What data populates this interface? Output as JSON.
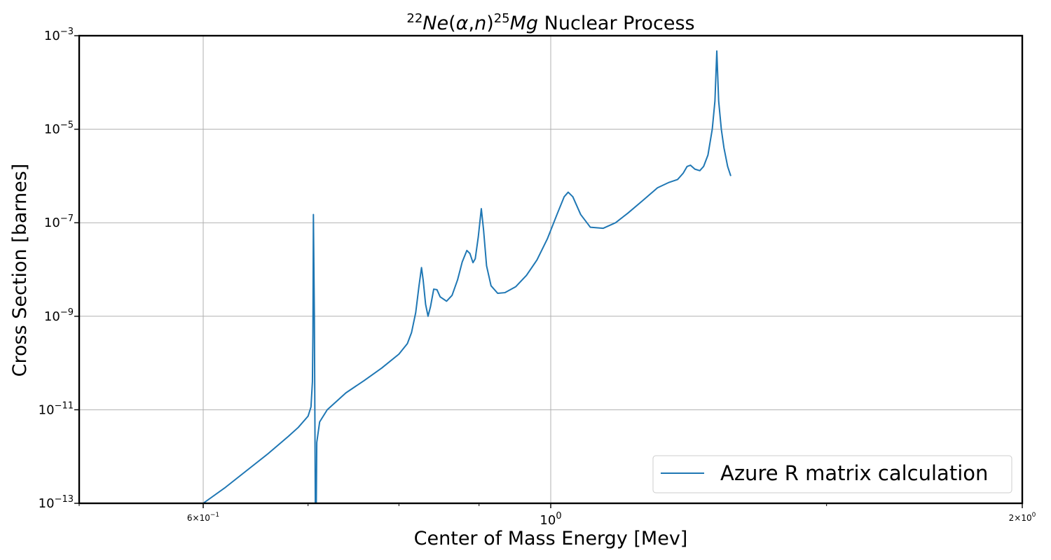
{
  "chart_data": {
    "type": "line",
    "title": {
      "pre_sup": "22",
      "reactant": "Ne",
      "open": "(",
      "alpha": "α",
      "comma": ",",
      "n": "n",
      "close": ")",
      "post_sup": "25",
      "product": "Mg",
      "suffix": " Nuclear Process"
    },
    "xlabel": "Center of Mass Energy [Mev]",
    "ylabel": "Cross Section [barnes]",
    "x_scale": "log",
    "y_scale": "log",
    "xlim": [
      0.5,
      2.0
    ],
    "ylim": [
      1e-13,
      0.001
    ],
    "grid": true,
    "legend_position": "lower-right",
    "x_ticks": [
      {
        "value": 0.6,
        "base": "6",
        "times": "×",
        "ten": "10",
        "exp": "−1"
      },
      {
        "value": 1.0,
        "base": "",
        "times": "",
        "ten": "10",
        "exp": "0"
      },
      {
        "value": 2.0,
        "base": "2",
        "times": "×",
        "ten": "10",
        "exp": "0"
      }
    ],
    "x_minor_ticks": [
      0.5,
      0.7,
      0.8,
      0.9,
      1.5
    ],
    "y_ticks": [
      {
        "value": 1e-13,
        "ten": "10",
        "exp": "−13"
      },
      {
        "value": 1e-11,
        "ten": "10",
        "exp": "−11"
      },
      {
        "value": 1e-09,
        "ten": "10",
        "exp": "−9"
      },
      {
        "value": 1e-07,
        "ten": "10",
        "exp": "−7"
      },
      {
        "value": 1e-05,
        "ten": "10",
        "exp": "−5"
      },
      {
        "value": 0.001,
        "ten": "10",
        "exp": "−3"
      }
    ],
    "series": [
      {
        "name": "Azure R matrix calculation",
        "color": "#1f77b4",
        "points": [
          [
            0.6,
            1e-13
          ],
          [
            0.62,
            2.2e-13
          ],
          [
            0.64,
            5.1e-13
          ],
          [
            0.66,
            1.15e-12
          ],
          [
            0.68,
            2.7e-12
          ],
          [
            0.69,
            4.2e-12
          ],
          [
            0.7,
            7.3e-12
          ],
          [
            0.703,
            1.15e-11
          ],
          [
            0.7045,
            4e-11
          ],
          [
            0.705,
            4e-10
          ],
          [
            0.7055,
            1.5e-07
          ],
          [
            0.7065,
            1e-09
          ],
          [
            0.7075,
            1e-13
          ],
          [
            0.708,
            1e-13
          ],
          [
            0.7085,
            1e-13
          ],
          [
            0.709,
            2e-12
          ],
          [
            0.712,
            5.5e-12
          ],
          [
            0.72,
            1e-11
          ],
          [
            0.74,
            2.3e-11
          ],
          [
            0.76,
            4.2e-11
          ],
          [
            0.78,
            7.8e-11
          ],
          [
            0.8,
            1.55e-10
          ],
          [
            0.81,
            2.6e-10
          ],
          [
            0.815,
            4.5e-10
          ],
          [
            0.82,
            1.2e-09
          ],
          [
            0.824,
            4.5e-09
          ],
          [
            0.827,
            1.1e-08
          ],
          [
            0.829,
            6e-09
          ],
          [
            0.832,
            1.8e-09
          ],
          [
            0.835,
            1e-09
          ],
          [
            0.838,
            1.6e-09
          ],
          [
            0.842,
            3.8e-09
          ],
          [
            0.846,
            3.7e-09
          ],
          [
            0.85,
            2.6e-09
          ],
          [
            0.858,
            2.1e-09
          ],
          [
            0.865,
            2.8e-09
          ],
          [
            0.872,
            6e-09
          ],
          [
            0.878,
            1.45e-08
          ],
          [
            0.884,
            2.55e-08
          ],
          [
            0.888,
            2.2e-08
          ],
          [
            0.892,
            1.4e-08
          ],
          [
            0.895,
            1.7e-08
          ],
          [
            0.899,
            5e-08
          ],
          [
            0.903,
            2e-07
          ],
          [
            0.906,
            7e-08
          ],
          [
            0.91,
            1.2e-08
          ],
          [
            0.916,
            4.5e-09
          ],
          [
            0.925,
            3.1e-09
          ],
          [
            0.935,
            3.2e-09
          ],
          [
            0.95,
            4.3e-09
          ],
          [
            0.965,
            7.5e-09
          ],
          [
            0.98,
            1.6e-08
          ],
          [
            0.995,
            4.5e-08
          ],
          [
            1.01,
            1.6e-07
          ],
          [
            1.02,
            3.6e-07
          ],
          [
            1.026,
            4.5e-07
          ],
          [
            1.033,
            3.6e-07
          ],
          [
            1.045,
            1.5e-07
          ],
          [
            1.06,
            8e-08
          ],
          [
            1.08,
            7.6e-08
          ],
          [
            1.1,
            1e-07
          ],
          [
            1.12,
            1.6e-07
          ],
          [
            1.145,
            3e-07
          ],
          [
            1.17,
            5.6e-07
          ],
          [
            1.19,
            7.3e-07
          ],
          [
            1.205,
            8.4e-07
          ],
          [
            1.215,
            1.15e-06
          ],
          [
            1.222,
            1.6e-06
          ],
          [
            1.228,
            1.7e-06
          ],
          [
            1.236,
            1.4e-06
          ],
          [
            1.245,
            1.3e-06
          ],
          [
            1.252,
            1.6e-06
          ],
          [
            1.26,
            2.8e-06
          ],
          [
            1.268,
            1e-05
          ],
          [
            1.273,
            4e-05
          ],
          [
            1.2765,
            0.00047
          ],
          [
            1.28,
            4e-05
          ],
          [
            1.285,
            1e-05
          ],
          [
            1.29,
            4e-06
          ],
          [
            1.297,
            1.6e-06
          ],
          [
            1.303,
            1e-06
          ]
        ]
      }
    ]
  }
}
